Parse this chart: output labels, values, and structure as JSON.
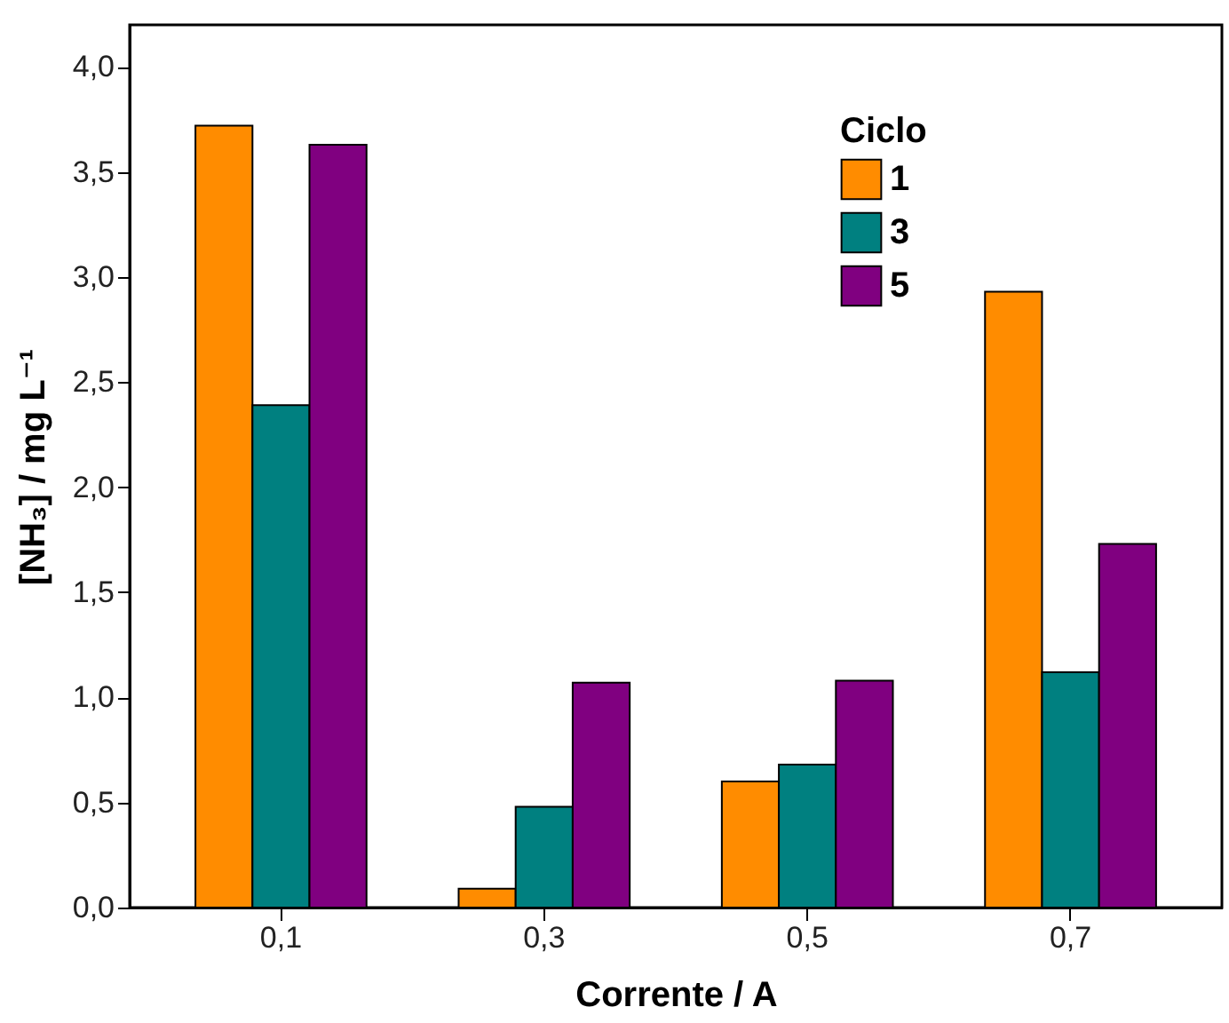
{
  "chart_data": {
    "type": "bar",
    "xlabel": "Corrente / A",
    "ylabel": "[NH₃] / mg L⁻¹",
    "legend_title": "Ciclo",
    "legend": "top right",
    "grid": false,
    "categories": [
      "0,1",
      "0,3",
      "0,5",
      "0,7"
    ],
    "series": [
      {
        "name": "1",
        "color": "#ff8c00",
        "values": [
          3.72,
          0.09,
          0.6,
          2.93
        ]
      },
      {
        "name": "3",
        "color": "#008080",
        "values": [
          2.39,
          0.48,
          0.68,
          1.12
        ]
      },
      {
        "name": "5",
        "color": "#800080",
        "values": [
          3.63,
          1.07,
          1.08,
          1.73
        ]
      }
    ],
    "ylim": [
      0,
      4.2
    ],
    "yticks": [
      {
        "value": 0,
        "label": "0,0"
      },
      {
        "value": 0.5,
        "label": "0,5"
      },
      {
        "value": 1,
        "label": "1,0"
      },
      {
        "value": 1.5,
        "label": "1,5"
      },
      {
        "value": 2,
        "label": "2,0"
      },
      {
        "value": 2.5,
        "label": "2,5"
      },
      {
        "value": 3,
        "label": "3,0"
      },
      {
        "value": 3.5,
        "label": "3,5"
      },
      {
        "value": 4,
        "label": "4,0"
      }
    ]
  }
}
